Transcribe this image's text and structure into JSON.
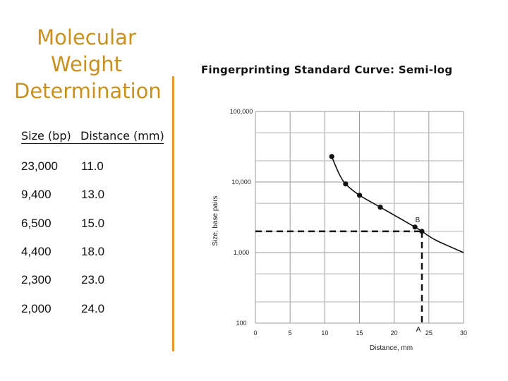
{
  "slide_title": "Molecular Weight Determination",
  "table": {
    "headers": [
      "Size (bp)",
      "Distance (mm)"
    ],
    "rows": [
      [
        "23,000",
        "11.0"
      ],
      [
        "9,400",
        "13.0"
      ],
      [
        "6,500",
        "15.0"
      ],
      [
        "4,400",
        "18.0"
      ],
      [
        "2,300",
        "23.0"
      ],
      [
        "2,000",
        "24.0"
      ]
    ]
  },
  "colors": {
    "title": "#c8901e",
    "divider": "#e59a23"
  },
  "chart_data": {
    "type": "scatter",
    "title": "Fingerprinting Standard Curve:  Semi-log",
    "xlabel": "Distance, mm",
    "ylabel": "Size, base pairs",
    "x_ticks": [
      0,
      5,
      10,
      15,
      20,
      25,
      30
    ],
    "x_tick_labels": [
      "0",
      "5",
      "10",
      "15",
      "20",
      "25",
      "30"
    ],
    "y_ticks": [
      100,
      1000,
      10000,
      100000
    ],
    "y_tick_labels": [
      "100",
      "1,000",
      "10,000",
      "100,000"
    ],
    "xlim": [
      0,
      30
    ],
    "ylim": [
      100,
      100000
    ],
    "y_scale": "log",
    "grid": true,
    "points": [
      {
        "x": 11,
        "y": 23000
      },
      {
        "x": 13,
        "y": 9400
      },
      {
        "x": 15,
        "y": 6500
      },
      {
        "x": 18,
        "y": 4400
      },
      {
        "x": 23,
        "y": 2300
      },
      {
        "x": 24,
        "y": 2000
      }
    ],
    "curve": [
      {
        "x": 11,
        "y": 23000
      },
      {
        "x": 12,
        "y": 13500
      },
      {
        "x": 13,
        "y": 9400
      },
      {
        "x": 15,
        "y": 6500
      },
      {
        "x": 18,
        "y": 4400
      },
      {
        "x": 23,
        "y": 2300
      },
      {
        "x": 24,
        "y": 2000
      },
      {
        "x": 26,
        "y": 1500
      },
      {
        "x": 30,
        "y": 1000
      }
    ],
    "reference": {
      "x": 24,
      "y": 2000,
      "point_label": "B",
      "axis_label": "A"
    }
  }
}
